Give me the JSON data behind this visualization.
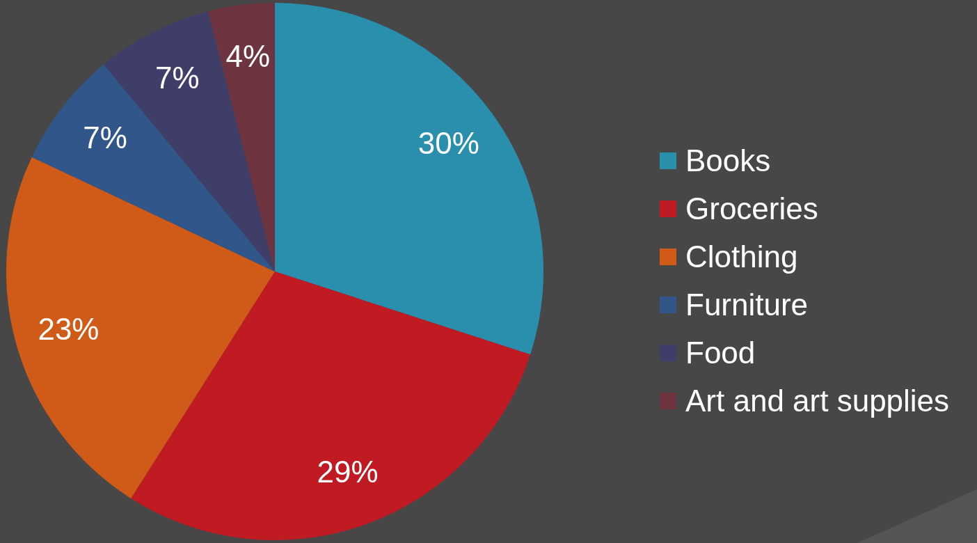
{
  "chart_data": {
    "type": "pie",
    "categories": [
      "Books",
      "Groceries",
      "Clothing",
      "Furniture",
      "Food",
      "Art and art supplies"
    ],
    "values": [
      30,
      29,
      23,
      7,
      7,
      4
    ],
    "colors": [
      "#2a8fad",
      "#c01a23",
      "#d05a17",
      "#30568a",
      "#3e3e68",
      "#6e3440"
    ],
    "value_labels": [
      "30%",
      "29%",
      "23%",
      "7%",
      "7%",
      "4%"
    ],
    "legend": "right"
  }
}
